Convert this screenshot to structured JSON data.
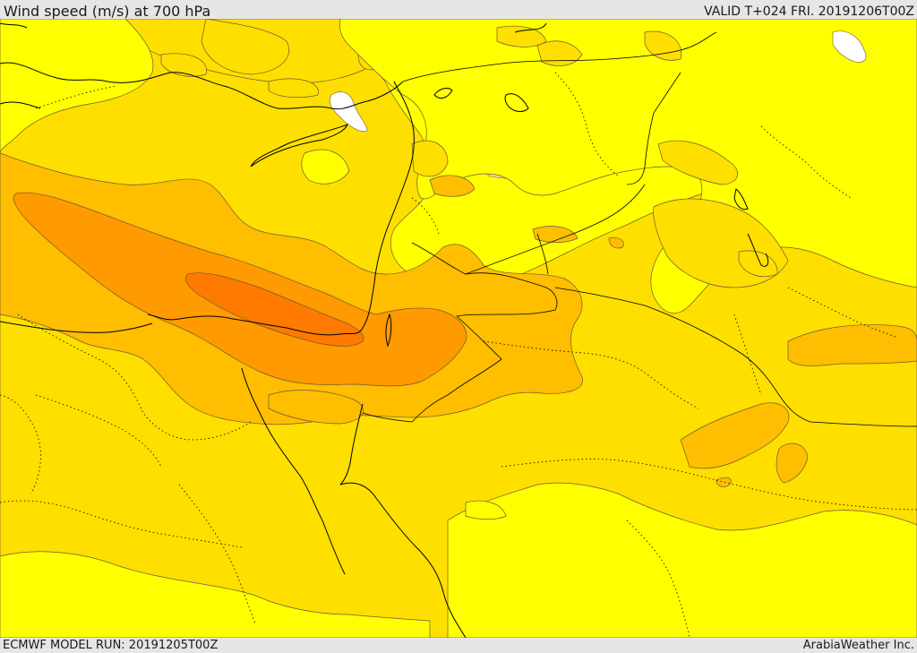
{
  "header": {
    "title": "Wind speed (m/s) at 700 hPa",
    "valid": "VALID T+024 FRI. 20191206T00Z"
  },
  "footer": {
    "model_run": "ECMWF MODEL RUN: 20191205T00Z",
    "credit": "ArabiaWeather Inc."
  },
  "map": {
    "variable": "wind speed",
    "level_hpa": 700,
    "unit": "m/s",
    "colors": {
      "band_light": "#ffe0a8",
      "band_1": "#ffff00",
      "band_2": "#ffdf00",
      "band_3": "#ffbe00",
      "band_4": "#ff9a00",
      "band_5": "#ff7a00",
      "missing": "#ffffff",
      "contour": "#6a5a3a",
      "coast": "#000000"
    }
  }
}
